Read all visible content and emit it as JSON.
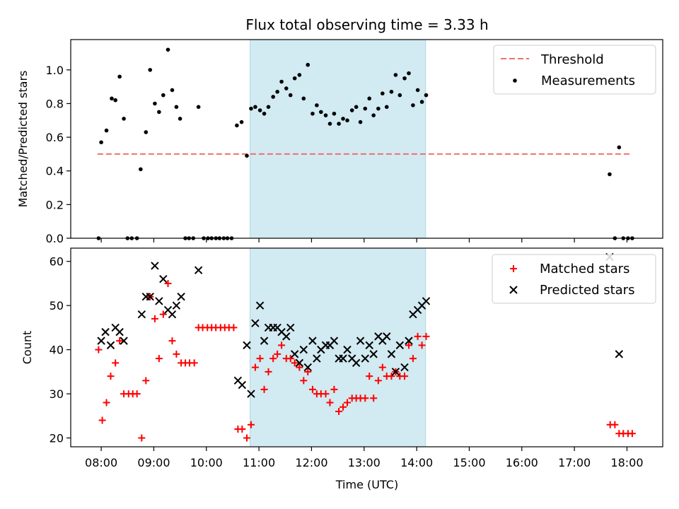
{
  "chart_data": {
    "title": "Flux total observing time = 3.33 h",
    "xlabel": "Time (UTC)",
    "x_unit": "hours UTC",
    "xlim": [
      7.42,
      18.68
    ],
    "x_ticks": [
      8,
      9,
      10,
      11,
      12,
      13,
      14,
      15,
      16,
      17,
      18
    ],
    "x_tick_labels": [
      "08:00",
      "09:00",
      "10:00",
      "11:00",
      "12:00",
      "13:00",
      "14:00",
      "15:00",
      "16:00",
      "17:00",
      "18:00"
    ],
    "shaded_interval": [
      10.83,
      14.17
    ],
    "shade_color": "#add8e6",
    "panels": [
      {
        "type": "scatter",
        "ylabel": "Matched/Predicted stars",
        "ylim": [
          0.0,
          1.18
        ],
        "y_ticks": [
          0.0,
          0.2,
          0.4,
          0.6,
          0.8,
          1.0
        ],
        "y_tick_labels": [
          "0.0",
          "0.2",
          "0.4",
          "0.6",
          "0.8",
          "1.0"
        ],
        "legend": {
          "position": "top-right",
          "entries": [
            "Threshold",
            "Measurements"
          ]
        },
        "threshold": {
          "name": "Threshold",
          "y": 0.5,
          "x_range": [
            7.93,
            18.1
          ],
          "color": "#f07070",
          "style": "dashed"
        },
        "series": [
          {
            "name": "Measurements",
            "marker": "dot",
            "color": "#000000",
            "points": [
              [
                7.95,
                0.0
              ],
              [
                8.0,
                0.57
              ],
              [
                8.1,
                0.64
              ],
              [
                8.2,
                0.83
              ],
              [
                8.27,
                0.82
              ],
              [
                8.35,
                0.96
              ],
              [
                8.43,
                0.71
              ],
              [
                8.5,
                0.0
              ],
              [
                8.58,
                0.0
              ],
              [
                8.68,
                0.0
              ],
              [
                8.75,
                0.41
              ],
              [
                8.85,
                0.63
              ],
              [
                8.93,
                1.0
              ],
              [
                9.02,
                0.8
              ],
              [
                9.1,
                0.75
              ],
              [
                9.18,
                0.85
              ],
              [
                9.27,
                1.12
              ],
              [
                9.35,
                0.88
              ],
              [
                9.43,
                0.78
              ],
              [
                9.5,
                0.71
              ],
              [
                9.6,
                0.0
              ],
              [
                9.67,
                0.0
              ],
              [
                9.75,
                0.0
              ],
              [
                9.85,
                0.78
              ],
              [
                9.95,
                0.0
              ],
              [
                10.03,
                0.0
              ],
              [
                10.1,
                0.0
              ],
              [
                10.18,
                0.0
              ],
              [
                10.25,
                0.0
              ],
              [
                10.33,
                0.0
              ],
              [
                10.4,
                0.0
              ],
              [
                10.48,
                0.0
              ],
              [
                10.58,
                0.67
              ],
              [
                10.67,
                0.69
              ],
              [
                10.77,
                0.49
              ],
              [
                10.85,
                0.77
              ],
              [
                10.93,
                0.78
              ],
              [
                11.02,
                0.76
              ],
              [
                11.1,
                0.74
              ],
              [
                11.18,
                0.78
              ],
              [
                11.27,
                0.84
              ],
              [
                11.35,
                0.87
              ],
              [
                11.43,
                0.93
              ],
              [
                11.52,
                0.89
              ],
              [
                11.6,
                0.85
              ],
              [
                11.68,
                0.95
              ],
              [
                11.77,
                0.97
              ],
              [
                11.85,
                0.83
              ],
              [
                11.93,
                1.03
              ],
              [
                12.02,
                0.74
              ],
              [
                12.1,
                0.79
              ],
              [
                12.18,
                0.75
              ],
              [
                12.27,
                0.73
              ],
              [
                12.35,
                0.68
              ],
              [
                12.43,
                0.74
              ],
              [
                12.52,
                0.68
              ],
              [
                12.6,
                0.71
              ],
              [
                12.68,
                0.7
              ],
              [
                12.77,
                0.76
              ],
              [
                12.85,
                0.78
              ],
              [
                12.93,
                0.69
              ],
              [
                13.02,
                0.77
              ],
              [
                13.1,
                0.83
              ],
              [
                13.18,
                0.73
              ],
              [
                13.27,
                0.77
              ],
              [
                13.35,
                0.86
              ],
              [
                13.43,
                0.78
              ],
              [
                13.52,
                0.87
              ],
              [
                13.6,
                0.97
              ],
              [
                13.68,
                0.85
              ],
              [
                13.77,
                0.95
              ],
              [
                13.85,
                0.98
              ],
              [
                13.93,
                0.79
              ],
              [
                14.02,
                0.88
              ],
              [
                14.1,
                0.81
              ],
              [
                14.18,
                0.85
              ],
              [
                17.67,
                0.38
              ],
              [
                17.77,
                0.0
              ],
              [
                17.85,
                0.54
              ],
              [
                17.93,
                0.0
              ],
              [
                18.02,
                0.0
              ],
              [
                18.1,
                0.0
              ]
            ]
          }
        ]
      },
      {
        "type": "scatter",
        "ylabel": "Count",
        "ylim": [
          18.0,
          63.0
        ],
        "y_ticks": [
          20,
          30,
          40,
          50,
          60
        ],
        "y_tick_labels": [
          "20",
          "30",
          "40",
          "50",
          "60"
        ],
        "legend": {
          "position": "top-right",
          "entries": [
            "Matched stars",
            "Predicted stars"
          ]
        },
        "series": [
          {
            "name": "Matched stars",
            "marker": "plus",
            "color": "#ff0000",
            "points": [
              [
                7.95,
                40
              ],
              [
                8.02,
                24
              ],
              [
                8.1,
                28
              ],
              [
                8.18,
                34
              ],
              [
                8.27,
                37
              ],
              [
                8.35,
                42
              ],
              [
                8.43,
                30
              ],
              [
                8.52,
                30
              ],
              [
                8.6,
                30
              ],
              [
                8.68,
                30
              ],
              [
                8.77,
                20
              ],
              [
                8.85,
                33
              ],
              [
                8.93,
                52
              ],
              [
                9.02,
                47
              ],
              [
                9.1,
                38
              ],
              [
                9.18,
                48
              ],
              [
                9.27,
                55
              ],
              [
                9.35,
                42
              ],
              [
                9.43,
                39
              ],
              [
                9.52,
                37
              ],
              [
                9.6,
                37
              ],
              [
                9.68,
                37
              ],
              [
                9.77,
                37
              ],
              [
                9.85,
                45
              ],
              [
                9.93,
                45
              ],
              [
                10.02,
                45
              ],
              [
                10.1,
                45
              ],
              [
                10.18,
                45
              ],
              [
                10.27,
                45
              ],
              [
                10.35,
                45
              ],
              [
                10.43,
                45
              ],
              [
                10.52,
                45
              ],
              [
                10.6,
                22
              ],
              [
                10.68,
                22
              ],
              [
                10.77,
                20
              ],
              [
                10.85,
                23
              ],
              [
                10.93,
                36
              ],
              [
                11.02,
                38
              ],
              [
                11.1,
                31
              ],
              [
                11.18,
                35
              ],
              [
                11.27,
                38
              ],
              [
                11.35,
                39
              ],
              [
                11.43,
                41
              ],
              [
                11.52,
                38
              ],
              [
                11.6,
                38
              ],
              [
                11.68,
                37
              ],
              [
                11.77,
                36
              ],
              [
                11.85,
                33
              ],
              [
                11.93,
                35
              ],
              [
                12.02,
                31
              ],
              [
                12.1,
                30
              ],
              [
                12.18,
                30
              ],
              [
                12.27,
                30
              ],
              [
                12.35,
                28
              ],
              [
                12.43,
                31
              ],
              [
                12.52,
                26
              ],
              [
                12.6,
                27
              ],
              [
                12.68,
                28
              ],
              [
                12.77,
                29
              ],
              [
                12.85,
                29
              ],
              [
                12.93,
                29
              ],
              [
                13.02,
                29
              ],
              [
                13.1,
                34
              ],
              [
                13.18,
                29
              ],
              [
                13.27,
                33
              ],
              [
                13.35,
                36
              ],
              [
                13.43,
                34
              ],
              [
                13.52,
                34
              ],
              [
                13.6,
                35
              ],
              [
                13.68,
                34
              ],
              [
                13.77,
                34
              ],
              [
                13.85,
                41
              ],
              [
                13.93,
                38
              ],
              [
                14.02,
                43
              ],
              [
                14.1,
                41
              ],
              [
                14.18,
                43
              ],
              [
                17.68,
                23
              ],
              [
                17.77,
                23
              ],
              [
                17.85,
                21
              ],
              [
                17.93,
                21
              ],
              [
                18.02,
                21
              ],
              [
                18.1,
                21
              ]
            ]
          },
          {
            "name": "Predicted stars",
            "marker": "x",
            "color": "#000000",
            "points": [
              [
                8.0,
                42
              ],
              [
                8.08,
                44
              ],
              [
                8.18,
                41
              ],
              [
                8.27,
                45
              ],
              [
                8.35,
                44
              ],
              [
                8.43,
                42
              ],
              [
                8.77,
                48
              ],
              [
                8.85,
                52
              ],
              [
                8.93,
                52
              ],
              [
                9.02,
                59
              ],
              [
                9.1,
                51
              ],
              [
                9.18,
                56
              ],
              [
                9.27,
                49
              ],
              [
                9.35,
                48
              ],
              [
                9.43,
                50
              ],
              [
                9.52,
                52
              ],
              [
                9.85,
                58
              ],
              [
                10.6,
                33
              ],
              [
                10.68,
                32
              ],
              [
                10.77,
                41
              ],
              [
                10.85,
                30
              ],
              [
                10.93,
                46
              ],
              [
                11.02,
                50
              ],
              [
                11.1,
                42
              ],
              [
                11.18,
                45
              ],
              [
                11.27,
                45
              ],
              [
                11.35,
                45
              ],
              [
                11.43,
                44
              ],
              [
                11.52,
                43
              ],
              [
                11.6,
                45
              ],
              [
                11.68,
                39
              ],
              [
                11.77,
                37
              ],
              [
                11.85,
                40
              ],
              [
                11.93,
                36
              ],
              [
                12.02,
                42
              ],
              [
                12.1,
                38
              ],
              [
                12.18,
                40
              ],
              [
                12.27,
                41
              ],
              [
                12.35,
                41
              ],
              [
                12.43,
                42
              ],
              [
                12.52,
                38
              ],
              [
                12.6,
                38
              ],
              [
                12.68,
                40
              ],
              [
                12.77,
                38
              ],
              [
                12.85,
                37
              ],
              [
                12.93,
                42
              ],
              [
                13.02,
                38
              ],
              [
                13.1,
                41
              ],
              [
                13.18,
                39
              ],
              [
                13.27,
                43
              ],
              [
                13.35,
                42
              ],
              [
                13.43,
                43
              ],
              [
                13.52,
                39
              ],
              [
                13.6,
                35
              ],
              [
                13.68,
                41
              ],
              [
                13.77,
                36
              ],
              [
                13.85,
                42
              ],
              [
                13.93,
                48
              ],
              [
                14.02,
                49
              ],
              [
                14.1,
                50
              ],
              [
                14.18,
                51
              ],
              [
                17.67,
                61
              ],
              [
                17.85,
                39
              ]
            ]
          }
        ]
      }
    ]
  }
}
